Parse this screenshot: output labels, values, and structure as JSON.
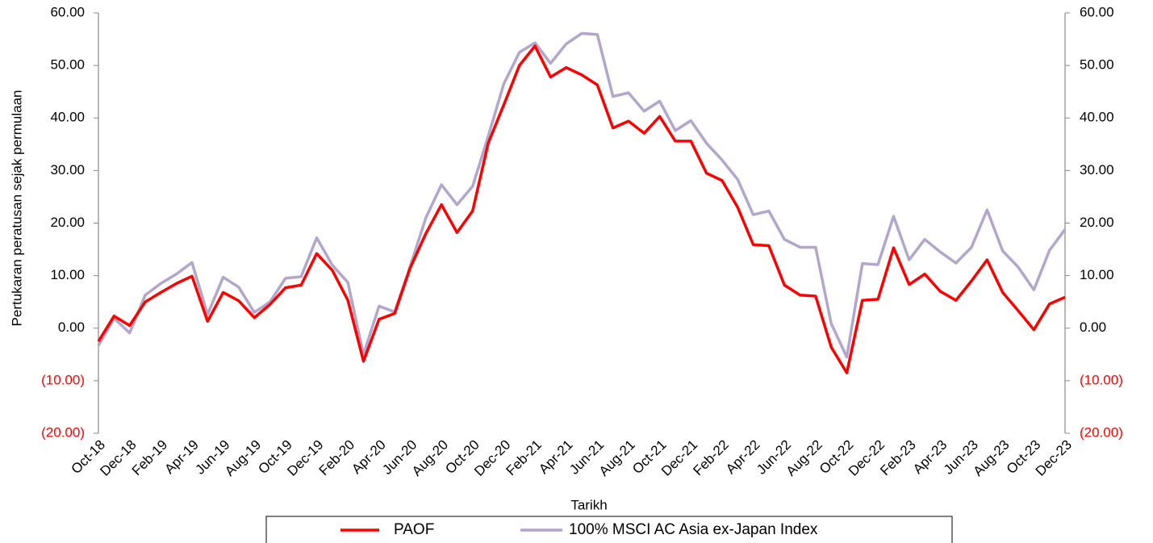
{
  "chart_data": {
    "type": "line",
    "y_label": "Pertukaran peratusan sejak permulaan",
    "x_label": "Tarikh",
    "categories": [
      "Oct-18",
      null,
      "Dec-18",
      null,
      "Feb-19",
      null,
      "Apr-19",
      null,
      "Jun-19",
      null,
      "Aug-19",
      null,
      "Oct-19",
      null,
      "Dec-19",
      null,
      "Feb-20",
      null,
      "Apr-20",
      null,
      "Jun-20",
      null,
      "Aug-20",
      null,
      "Oct-20",
      null,
      "Dec-20",
      null,
      "Feb-21",
      null,
      "Apr-21",
      null,
      "Jun-21",
      null,
      "Aug-21",
      null,
      "Oct-21",
      null,
      "Dec-21",
      null,
      "Feb-22",
      null,
      "Apr-22",
      null,
      "Jun-22",
      null,
      "Aug-22",
      null,
      "Oct-22",
      null,
      "Dec-22",
      null,
      "Feb-23",
      null,
      "Apr-23",
      null,
      "Jun-23",
      null,
      "Aug-23",
      null,
      "Oct-23",
      null,
      "Dec-23"
    ],
    "series": [
      {
        "name": "PAOF",
        "color": "#ff0000",
        "values": [
          -2.5,
          2.3,
          0.5,
          5.0,
          6.8,
          8.5,
          9.9,
          1.3,
          6.8,
          5.2,
          2.0,
          4.5,
          7.7,
          8.2,
          14.2,
          11.0,
          5.3,
          -6.3,
          1.7,
          2.8,
          11.5,
          18.0,
          23.5,
          18.2,
          22.3,
          35.2,
          42.5,
          50.0,
          53.7,
          47.8,
          49.6,
          48.2,
          46.3,
          38.1,
          39.4,
          37.1,
          40.3,
          35.6,
          35.6,
          29.5,
          28.1,
          23.0,
          15.9,
          15.7,
          8.2,
          6.3,
          6.1,
          -3.6,
          -8.5,
          5.3,
          5.5,
          15.3,
          8.3,
          10.3,
          7.0,
          5.3,
          9.0,
          13.0,
          6.8,
          3.3,
          -0.3,
          4.6,
          5.9
        ]
      },
      {
        "name": "100% MSCI AC Asia ex-Japan Index",
        "color": "#b3a6cc",
        "values": [
          -3.3,
          1.9,
          -0.9,
          6.3,
          8.5,
          10.3,
          12.5,
          2.6,
          9.7,
          7.8,
          3.0,
          5.0,
          9.5,
          9.8,
          17.2,
          12.0,
          8.7,
          -5.0,
          4.2,
          3.1,
          11.8,
          21.0,
          27.3,
          23.5,
          27.0,
          36.5,
          46.5,
          52.5,
          54.3,
          50.4,
          54.1,
          56.1,
          55.9,
          44.1,
          44.8,
          41.3,
          43.2,
          37.6,
          39.5,
          35.2,
          32.0,
          28.3,
          21.6,
          22.3,
          16.9,
          15.4,
          15.4,
          0.9,
          -5.5,
          12.3,
          12.1,
          21.3,
          13.0,
          16.9,
          14.5,
          12.4,
          15.4,
          22.5,
          14.7,
          11.6,
          7.3,
          14.8,
          18.8
        ]
      }
    ],
    "ylim": [
      -20,
      60
    ],
    "yticks": [
      {
        "value": -20,
        "label": "(20.00)"
      },
      {
        "value": -10,
        "label": "(10.00)"
      },
      {
        "value": 0,
        "label": "0.00"
      },
      {
        "value": 10,
        "label": "10.00"
      },
      {
        "value": 20,
        "label": "20.00"
      },
      {
        "value": 30,
        "label": "30.00"
      },
      {
        "value": 40,
        "label": "40.00"
      },
      {
        "value": 50,
        "label": "50.00"
      },
      {
        "value": 60,
        "label": "60.00"
      }
    ],
    "y2lim": [
      -20,
      60
    ],
    "y2ticks": [
      {
        "value": -20,
        "label": "(20.00)"
      },
      {
        "value": -10,
        "label": "(10.00)"
      },
      {
        "value": 0,
        "label": "0.00"
      },
      {
        "value": 10,
        "label": "10.00"
      },
      {
        "value": 20,
        "label": "20.00"
      },
      {
        "value": 30,
        "label": "30.00"
      },
      {
        "value": 40,
        "label": "40.00"
      },
      {
        "value": 50,
        "label": "50.00"
      },
      {
        "value": 60,
        "label": "60.00"
      }
    ],
    "negative_label_color": "#ff0000",
    "grid": false,
    "legend": "bottom"
  }
}
